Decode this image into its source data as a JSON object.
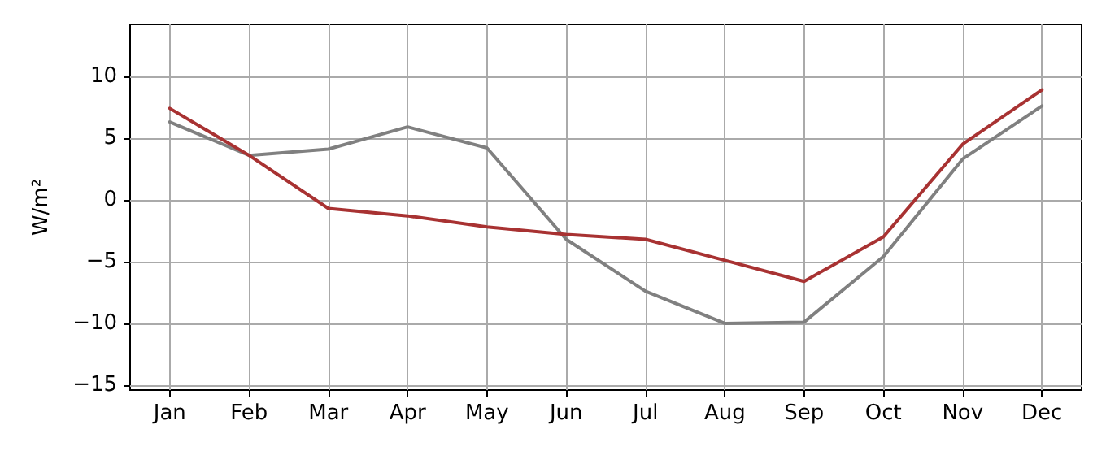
{
  "chart_data": {
    "type": "line",
    "ylabel": "W/m²",
    "categories": [
      "Jan",
      "Feb",
      "Mar",
      "Apr",
      "May",
      "Jun",
      "Jul",
      "Aug",
      "Sep",
      "Oct",
      "Nov",
      "Dec"
    ],
    "series": [
      {
        "color": "#808080",
        "values": [
          6.3,
          3.6,
          4.1,
          5.9,
          4.2,
          -3.2,
          -7.4,
          -10.0,
          -9.9,
          -4.6,
          3.3,
          7.6
        ]
      },
      {
        "color": "#a83232",
        "values": [
          7.4,
          3.6,
          -0.7,
          -1.3,
          -2.2,
          -2.8,
          -3.2,
          -4.9,
          -6.6,
          -3.0,
          4.5,
          8.9
        ]
      }
    ],
    "ylim": [
      -15.4,
      14.2
    ],
    "yticks": [
      -15,
      -10,
      -5,
      0,
      5,
      10
    ],
    "grid": true,
    "marker": "none",
    "line_style": "solid"
  }
}
